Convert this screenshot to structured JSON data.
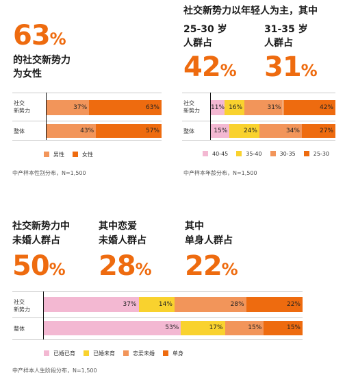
{
  "colors": {
    "orange_dark": "#ee6b0f",
    "orange_light": "#f2955a",
    "yellow": "#f9d22e",
    "pink": "#f3b8d2"
  },
  "gender": {
    "big_value": "63",
    "big_unit": "%",
    "caption_line1": "的社交新势力",
    "caption_line2": "为女性",
    "note": "中产样本性别分布，N=1,500"
  },
  "age": {
    "header": "社交新势力以年轻人为主，其中",
    "group1_line1": "25-30 岁",
    "group1_line2": "人群占",
    "group1_value": "42",
    "group2_line1": "31-35 岁",
    "group2_line2": "人群占",
    "group2_value": "31",
    "unit": "%",
    "note": "中产样本年龄分布，N=1,500"
  },
  "life": {
    "cap1_line1": "社交新势力中",
    "cap1_line2": "未婚人群占",
    "value1": "50",
    "cap2_line1": "其中恋爱",
    "cap2_line2": "未婚人群占",
    "value2": "28",
    "cap3_line1": "其中",
    "cap3_line2": "单身人群占",
    "value3": "22",
    "unit": "%",
    "note": "中产样本人生阶段分布，N=1,500"
  },
  "chart_data": [
    {
      "type": "bar",
      "stacked": true,
      "orientation": "horizontal",
      "categories": [
        "社交\n新势力",
        "整体"
      ],
      "series": [
        {
          "name": "男性",
          "color": "#f2955a",
          "values": [
            37,
            43
          ]
        },
        {
          "name": "女性",
          "color": "#ee6b0f",
          "values": [
            63,
            57
          ]
        }
      ],
      "legend": "bottom",
      "unit": "%"
    },
    {
      "type": "bar",
      "stacked": true,
      "orientation": "horizontal",
      "categories": [
        "社交\n新势力",
        "整体"
      ],
      "series": [
        {
          "name": "40-45",
          "color": "#f3b8d2",
          "values": [
            11,
            15
          ]
        },
        {
          "name": "35-40",
          "color": "#f9d22e",
          "values": [
            16,
            24
          ]
        },
        {
          "name": "30-35",
          "color": "#f2955a",
          "values": [
            31,
            34
          ]
        },
        {
          "name": "25-30",
          "color": "#ee6b0f",
          "values": [
            42,
            27
          ]
        }
      ],
      "legend": "bottom",
      "unit": "%"
    },
    {
      "type": "bar",
      "stacked": true,
      "orientation": "horizontal",
      "categories": [
        "社交\n新势力",
        "整体"
      ],
      "series": [
        {
          "name": "已婚已育",
          "color": "#f3b8d2",
          "values": [
            37,
            53
          ]
        },
        {
          "name": "已婚未育",
          "color": "#f9d22e",
          "values": [
            14,
            17
          ]
        },
        {
          "name": "恋爱未婚",
          "color": "#f2955a",
          "values": [
            28,
            15
          ]
        },
        {
          "name": "单身",
          "color": "#ee6b0f",
          "values": [
            22,
            15
          ]
        }
      ],
      "legend": "bottom",
      "unit": "%"
    }
  ]
}
